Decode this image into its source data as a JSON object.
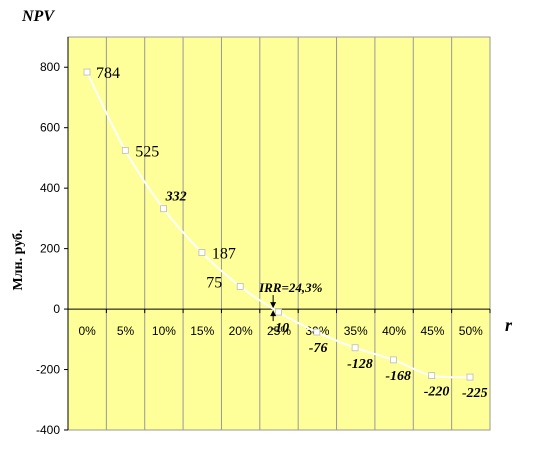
{
  "chart_data": {
    "type": "line",
    "title": "",
    "ylabel_top": "NPV",
    "ylabel": "Млн. руб.",
    "xlabel": "r",
    "categories": [
      "0%",
      "5%",
      "10%",
      "15%",
      "20%",
      "25%",
      "30%",
      "35%",
      "40%",
      "45%",
      "50%"
    ],
    "x": [
      0,
      5,
      10,
      15,
      20,
      25,
      30,
      35,
      40,
      45,
      50
    ],
    "y_ticks": [
      "800",
      "600",
      "400",
      "200",
      "0",
      "-200",
      "-400"
    ],
    "ylim": [
      -400,
      900
    ],
    "series": [
      {
        "values": [
          784,
          525,
          332,
          187,
          75,
          -10,
          -76,
          -128,
          -168,
          -220,
          -225
        ],
        "points": [
          {
            "x": 0,
            "y": 784,
            "label": "784",
            "style": "normal"
          },
          {
            "x": 5,
            "y": 525,
            "label": "525",
            "style": "normal"
          },
          {
            "x": 10,
            "y": 332,
            "label": "332",
            "style": "bold-italic"
          },
          {
            "x": 15,
            "y": 187,
            "label": "187",
            "style": "normal"
          },
          {
            "x": 20,
            "y": 75,
            "label": "75",
            "style": "normal"
          },
          {
            "x": 25,
            "y": -10,
            "label": "-10",
            "style": "bold-italic"
          },
          {
            "x": 30,
            "y": -76,
            "label": "-76",
            "style": "bold-italic"
          },
          {
            "x": 35,
            "y": -128,
            "label": "-128",
            "style": "bold-italic"
          },
          {
            "x": 40,
            "y": -168,
            "label": "-168",
            "style": "bold-italic"
          },
          {
            "x": 45,
            "y": -220,
            "label": "-220",
            "style": "bold-italic"
          },
          {
            "x": 50,
            "y": -225,
            "label": "-225",
            "style": "bold-italic"
          }
        ]
      }
    ],
    "annotation": {
      "text": "IRR=24,3%",
      "x": 24.3,
      "y": 0
    },
    "grid": true,
    "colors": {
      "plot_bg": "#ffff99",
      "line": "#ffffff",
      "grid": "#999999",
      "axis": "#000000"
    }
  }
}
